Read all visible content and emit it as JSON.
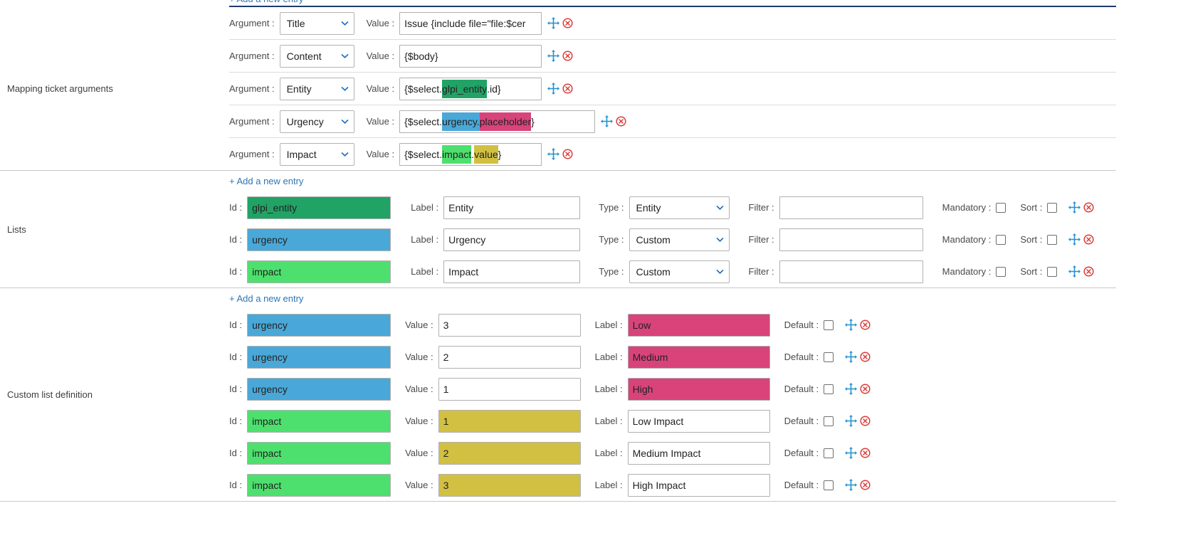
{
  "ui": {
    "add_entry": "+ Add a new entry",
    "labels": {
      "argument": "Argument :",
      "value": "Value :",
      "id": "Id :",
      "label": "Label :",
      "type": "Type :",
      "filter": "Filter :",
      "mandatory": "Mandatory :",
      "sort": "Sort :",
      "default": "Default :"
    }
  },
  "colors": {
    "green_dark": "#21a366",
    "blue": "#49a8d8",
    "green_light": "#4ee06e",
    "pink": "#d84479",
    "yellow": "#d2c042",
    "link": "#2e75b6",
    "top_line": "#203a6e",
    "move_icon": "#2491d0",
    "delete_icon": "#dd3b3b",
    "select_chevron": "#2573c1"
  },
  "icons": {
    "move": "move-icon (blue four-way arrow)",
    "delete": "delete-icon (red circled x)",
    "chevron": "chevron-down-icon (blue caret in selects)"
  },
  "mapping_section": {
    "title": "Mapping ticket arguments",
    "rows": [
      {
        "argument": "Title",
        "wide": false,
        "value_parts": [
          {
            "text": "Issue {include file=\"file:$cer",
            "bg": null
          }
        ]
      },
      {
        "argument": "Content",
        "wide": false,
        "value_parts": [
          {
            "text": "{$body}",
            "bg": null
          }
        ]
      },
      {
        "argument": "Entity",
        "wide": false,
        "value_parts": [
          {
            "text": "{$select.",
            "bg": null
          },
          {
            "text": "glpi_entity",
            "bg": "green_dark"
          },
          {
            "text": ".id}",
            "bg": null
          }
        ]
      },
      {
        "argument": "Urgency",
        "wide": true,
        "value_parts": [
          {
            "text": "{$select.",
            "bg": null
          },
          {
            "text": "urgency.",
            "bg": "blue"
          },
          {
            "text": "placeholder",
            "bg": "pink"
          },
          {
            "text": "}",
            "bg": null
          }
        ]
      },
      {
        "argument": "Impact",
        "wide": false,
        "value_parts": [
          {
            "text": "{$select.",
            "bg": null
          },
          {
            "text": "impact",
            "bg": "green_light"
          },
          {
            "text": ".",
            "bg": null
          },
          {
            "text": "value",
            "bg": "yellow"
          },
          {
            "text": "}",
            "bg": null
          }
        ]
      }
    ]
  },
  "lists_section": {
    "title": "Lists",
    "rows": [
      {
        "id": "glpi_entity",
        "id_bg": "green_dark",
        "label": "Entity",
        "type": "Entity",
        "filter": "",
        "mandatory": false,
        "sort": false
      },
      {
        "id": "urgency",
        "id_bg": "blue",
        "label": "Urgency",
        "type": "Custom",
        "filter": "",
        "mandatory": false,
        "sort": false
      },
      {
        "id": "impact",
        "id_bg": "green_light",
        "label": "Impact",
        "type": "Custom",
        "filter": "",
        "mandatory": false,
        "sort": false
      }
    ]
  },
  "custom_section": {
    "title": "Custom list definition",
    "rows": [
      {
        "id": "urgency",
        "id_bg": "blue",
        "value": "3",
        "value_bg": null,
        "label": "Low",
        "label_bg": "pink",
        "default": false
      },
      {
        "id": "urgency",
        "id_bg": "blue",
        "value": "2",
        "value_bg": null,
        "label": "Medium",
        "label_bg": "pink",
        "default": false
      },
      {
        "id": "urgency",
        "id_bg": "blue",
        "value": "1",
        "value_bg": null,
        "label": "High",
        "label_bg": "pink",
        "default": false
      },
      {
        "id": "impact",
        "id_bg": "green_light",
        "value": "1",
        "value_bg": "yellow",
        "label": "Low Impact",
        "label_bg": null,
        "default": false
      },
      {
        "id": "impact",
        "id_bg": "green_light",
        "value": "2",
        "value_bg": "yellow",
        "label": "Medium Impact",
        "label_bg": null,
        "default": false
      },
      {
        "id": "impact",
        "id_bg": "green_light",
        "value": "3",
        "value_bg": "yellow",
        "label": "High Impact",
        "label_bg": null,
        "default": false
      }
    ]
  }
}
